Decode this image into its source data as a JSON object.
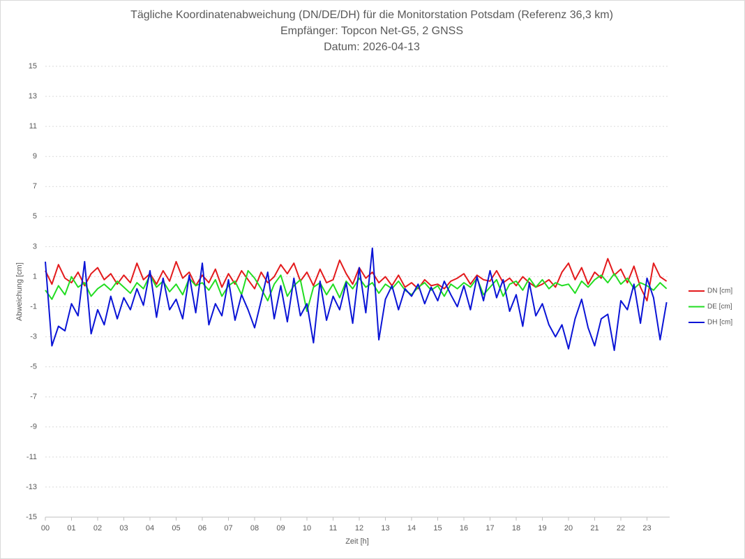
{
  "chart_data": {
    "type": "line",
    "title": "Tägliche Koordinatenabweichung (DN/DE/DH) für die Monitorstation Potsdam (Referenz 36,3 km)",
    "subtitle": "Empfänger: Topcon Net-G5, 2 GNSS",
    "date_line": "Datum: 2026-04-13",
    "x_label": "Zeit [h]",
    "y_label": "Abweichung [cm]",
    "xlim": [
      0,
      24
    ],
    "ylim": [
      -15,
      15
    ],
    "yticks": [
      -15,
      -13,
      -11,
      -9,
      -7,
      -5,
      -3,
      -1,
      1,
      3,
      5,
      7,
      9,
      11,
      13,
      15
    ],
    "xticks": [
      {
        "value": 0,
        "label": "00"
      },
      {
        "value": 1,
        "label": "01"
      },
      {
        "value": 2,
        "label": "02"
      },
      {
        "value": 3,
        "label": "03"
      },
      {
        "value": 4,
        "label": "04"
      },
      {
        "value": 5,
        "label": "05"
      },
      {
        "value": 6,
        "label": "06"
      },
      {
        "value": 7,
        "label": "07"
      },
      {
        "value": 8,
        "label": "08"
      },
      {
        "value": 9,
        "label": "09"
      },
      10,
      11,
      12,
      13,
      14,
      15,
      16,
      17,
      18,
      19,
      20,
      21,
      22,
      23
    ],
    "grid": true,
    "legend": "right",
    "x": [
      0,
      0.25,
      0.5,
      0.75,
      1,
      1.25,
      1.5,
      1.75,
      2,
      2.25,
      2.5,
      2.75,
      3,
      3.25,
      3.5,
      3.75,
      4,
      4.25,
      4.5,
      4.75,
      5,
      5.25,
      5.5,
      5.75,
      6,
      6.25,
      6.5,
      6.75,
      7,
      7.25,
      7.5,
      7.75,
      8,
      8.25,
      8.5,
      8.75,
      9,
      9.25,
      9.5,
      9.75,
      10,
      10.25,
      10.5,
      10.75,
      11,
      11.25,
      11.5,
      11.75,
      12,
      12.25,
      12.5,
      12.75,
      13,
      13.25,
      13.5,
      13.75,
      14,
      14.25,
      14.5,
      14.75,
      15,
      15.25,
      15.5,
      15.75,
      16,
      16.25,
      16.5,
      16.75,
      17,
      17.25,
      17.5,
      17.75,
      18,
      18.25,
      18.5,
      18.75,
      19,
      19.25,
      19.5,
      19.75,
      20,
      20.25,
      20.5,
      20.75,
      21,
      21.25,
      21.5,
      21.75,
      22,
      22.25,
      22.5,
      22.75,
      23,
      23.25,
      23.5,
      23.75
    ],
    "series": [
      {
        "name": "DN [cm]",
        "color": "#e31a1c",
        "values": [
          1.4,
          0.5,
          1.8,
          0.9,
          0.6,
          1.3,
          0.4,
          1.2,
          1.6,
          0.8,
          1.2,
          0.5,
          1.1,
          0.6,
          1.9,
          0.8,
          1.2,
          0.5,
          1.4,
          0.7,
          2.0,
          0.9,
          1.3,
          0.4,
          1.1,
          0.6,
          1.5,
          0.3,
          1.2,
          0.5,
          1.4,
          0.8,
          0.2,
          1.3,
          0.6,
          1.0,
          1.8,
          1.2,
          1.9,
          0.7,
          1.3,
          0.4,
          1.5,
          0.6,
          0.8,
          2.1,
          1.2,
          0.5,
          1.6,
          0.9,
          1.3,
          0.6,
          1.0,
          0.4,
          1.1,
          0.3,
          0.6,
          0.2,
          0.8,
          0.4,
          0.5,
          0.2,
          0.7,
          0.9,
          1.2,
          0.5,
          1.1,
          0.8,
          0.7,
          1.4,
          0.6,
          0.9,
          0.4,
          1.0,
          0.6,
          0.3,
          0.5,
          0.8,
          0.3,
          1.3,
          1.9,
          0.8,
          1.6,
          0.5,
          1.3,
          0.9,
          2.2,
          1.1,
          1.5,
          0.6,
          1.7,
          0.3,
          -0.6,
          1.9,
          1.0,
          0.7
        ]
      },
      {
        "name": "DE [cm]",
        "color": "#22dd22",
        "values": [
          0.1,
          -0.5,
          0.4,
          -0.2,
          1.0,
          0.3,
          0.6,
          -0.3,
          0.2,
          0.5,
          0.1,
          0.7,
          0.3,
          -0.1,
          0.6,
          0.2,
          1.1,
          0.3,
          0.7,
          0.0,
          0.5,
          -0.2,
          0.9,
          0.4,
          0.6,
          0.1,
          0.8,
          -0.3,
          0.4,
          0.7,
          -0.2,
          1.4,
          0.9,
          0.2,
          -0.6,
          0.5,
          1.1,
          -0.3,
          0.4,
          0.8,
          -1.3,
          0.3,
          0.6,
          -0.2,
          0.5,
          -0.4,
          0.7,
          0.2,
          0.9,
          0.3,
          0.6,
          -0.1,
          0.5,
          0.2,
          0.7,
          0.1,
          -0.2,
          0.3,
          0.6,
          0.1,
          0.4,
          -0.3,
          0.5,
          0.2,
          0.6,
          0.3,
          0.9,
          -0.2,
          0.3,
          0.8,
          -0.3,
          0.5,
          0.7,
          0.1,
          0.9,
          0.3,
          0.8,
          0.2,
          0.6,
          0.4,
          0.5,
          -0.1,
          0.7,
          0.3,
          0.8,
          1.1,
          0.6,
          1.2,
          0.5,
          0.9,
          0.2,
          0.6,
          0.4,
          0.1,
          0.6,
          0.2
        ]
      },
      {
        "name": "DH [cm]",
        "color": "#0a14d6",
        "values": [
          2.0,
          -3.6,
          -2.3,
          -2.6,
          -0.8,
          -1.6,
          2.0,
          -2.8,
          -1.2,
          -2.2,
          -0.3,
          -1.8,
          -0.4,
          -1.2,
          0.2,
          -0.9,
          1.4,
          -1.7,
          0.9,
          -1.2,
          -0.5,
          -1.8,
          1.1,
          -1.4,
          1.9,
          -2.2,
          -0.8,
          -1.6,
          0.8,
          -1.9,
          -0.2,
          -1.2,
          -2.4,
          -0.6,
          1.3,
          -1.8,
          0.4,
          -2.0,
          0.9,
          -1.6,
          -0.8,
          -3.4,
          0.7,
          -1.9,
          -0.3,
          -1.2,
          0.6,
          -2.1,
          1.6,
          -1.4,
          2.9,
          -3.2,
          -0.5,
          0.4,
          -1.2,
          0.2,
          -0.3,
          0.5,
          -0.8,
          0.3,
          -0.6,
          0.7,
          -0.2,
          -1.0,
          0.4,
          -1.2,
          1.0,
          -0.6,
          1.4,
          -0.4,
          0.8,
          -1.3,
          -0.2,
          -2.3,
          0.6,
          -1.6,
          -0.8,
          -2.2,
          -3.0,
          -2.2,
          -3.8,
          -1.8,
          -0.5,
          -2.4,
          -3.6,
          -1.8,
          -1.5,
          -3.9,
          -0.6,
          -1.2,
          0.5,
          -2.1,
          0.9,
          -0.4,
          -3.2,
          -0.7
        ]
      }
    ]
  }
}
